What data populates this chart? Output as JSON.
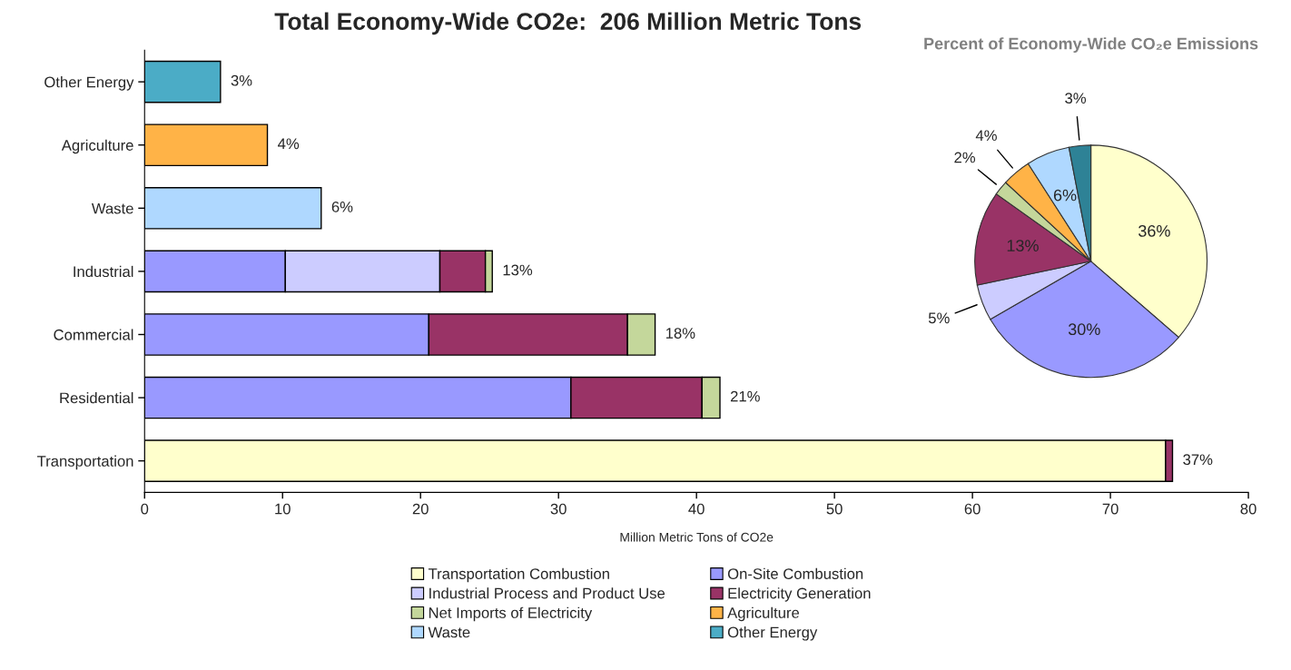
{
  "chart_data": [
    {
      "type": "bar",
      "orientation": "horizontal",
      "stacked": true,
      "title": "Total Economy-Wide CO2e:  206 Million Metric Tons",
      "xlabel": "Million Metric Tons of CO2e",
      "categories": [
        "Other Energy",
        "Agriculture",
        "Waste",
        "Industrial",
        "Commercial",
        "Residential",
        "Transportation"
      ],
      "series": [
        {
          "name": "Transportation Combustion",
          "color": "#ffffcc",
          "values": [
            null,
            null,
            null,
            null,
            null,
            null,
            74.0
          ]
        },
        {
          "name": "On-Site Combustion",
          "color": "#9999ff",
          "values": [
            null,
            null,
            null,
            10.2,
            20.6,
            30.9,
            null
          ]
        },
        {
          "name": "Industrial Process and Product Use",
          "color": "#ccccff",
          "values": [
            null,
            null,
            null,
            11.2,
            null,
            null,
            null
          ]
        },
        {
          "name": "Electricity Generation",
          "color": "#993366",
          "values": [
            null,
            null,
            null,
            3.3,
            14.4,
            9.5,
            0.5
          ]
        },
        {
          "name": "Net Imports of Electricity",
          "color": "#c4d79b",
          "values": [
            null,
            null,
            null,
            0.5,
            2.0,
            1.3,
            null
          ]
        },
        {
          "name": "Agriculture",
          "color": "#ffb347",
          "values": [
            null,
            8.9,
            null,
            null,
            null,
            null,
            null
          ]
        },
        {
          "name": "Waste",
          "color": "#afd8ff",
          "values": [
            null,
            null,
            12.8,
            null,
            null,
            null,
            null
          ]
        },
        {
          "name": "Other Energy",
          "color": "#4bacc6",
          "values": [
            5.5,
            null,
            null,
            null,
            null,
            null,
            null
          ]
        }
      ],
      "annotations": [
        {
          "text": "3%",
          "x": 5.5,
          "y": "Other Energy"
        },
        {
          "text": "4%",
          "x": 8.9,
          "y": "Agriculture"
        },
        {
          "text": "6%",
          "x": 12.8,
          "y": "Waste"
        },
        {
          "text": "13%",
          "x": 25.2,
          "y": "Industrial"
        },
        {
          "text": "18%",
          "x": 37.0,
          "y": "Commercial"
        },
        {
          "text": "21%",
          "x": 41.7,
          "y": "Residential"
        },
        {
          "text": "37%",
          "x": 74.5,
          "y": "Transportation"
        }
      ],
      "xlim": [
        0,
        80
      ],
      "xticks": [
        0,
        10,
        20,
        30,
        40,
        50,
        60,
        70,
        80
      ],
      "legend": "bottom"
    },
    {
      "type": "pie",
      "title": "Percent of Economy-Wide CO₂e Emissions",
      "categories": [
        null,
        null,
        null,
        null,
        null,
        null,
        null,
        null
      ],
      "values": [
        36,
        30,
        5,
        13,
        2,
        4,
        6,
        3
      ],
      "colors": [
        "#ffffcc",
        "#9999ff",
        "#ccccff",
        "#993366",
        "#c4d79b",
        "#ffb347",
        "#afd8ff",
        "#2e8296"
      ],
      "value_labels": [
        "36%",
        "30%",
        "5%",
        "13%",
        "2%",
        "4%",
        "6%",
        "3%"
      ]
    }
  ]
}
